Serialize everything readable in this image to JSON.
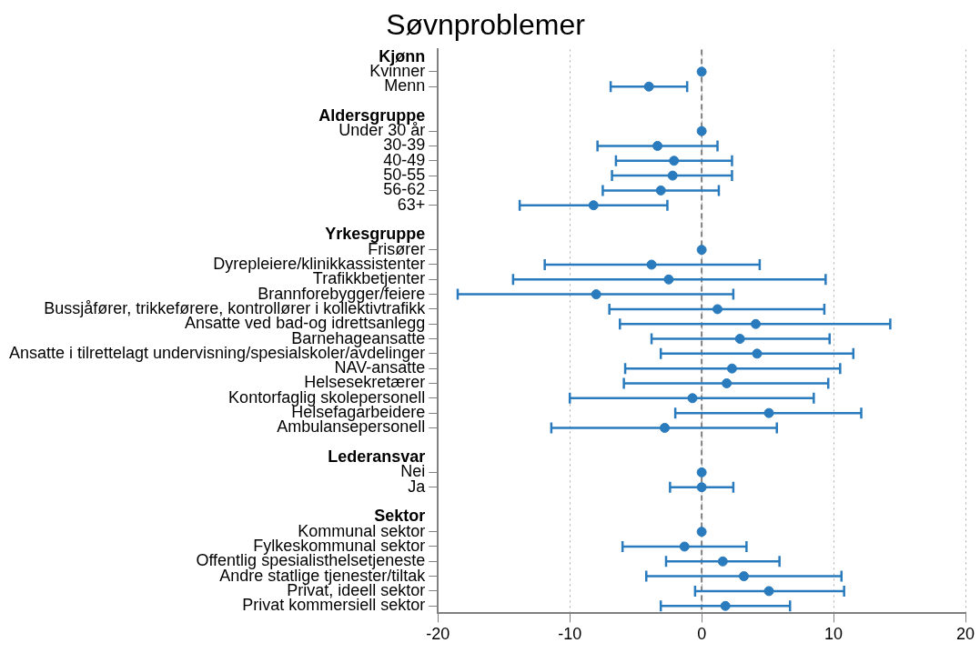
{
  "chart_data": {
    "type": "scatter",
    "title": "Søvnproblemer",
    "categories": [
      "Kjønn",
      "Kvinner",
      "Menn",
      null,
      "Aldersgruppe",
      "Under 30 år",
      "30-39",
      "40-49",
      "50-55",
      "56-62",
      "63+",
      null,
      "Yrkesgruppe",
      "Frisører",
      "Dyrepleiere/klinikkassistenter",
      "Trafikkbetjenter",
      "Brannforebygger/feiere",
      "Bussjåfører, trikkeførere, kontrollører i kollektivtrafikk",
      "Ansatte ved bad-og idrettsanlegg",
      "Barnehageansatte",
      "Ansatte i tilrettelagt undervisning/spesialskoler/avdelinger",
      "NAV-ansatte",
      "Helsesekretærer",
      "Kontorfaglig skolepersonell",
      "Helsefagarbeidere",
      "Ambulansepersonell",
      null,
      "Lederansvar",
      "Nei",
      "Ja",
      null,
      "Sektor",
      "Kommunal sektor",
      "Fylkeskommunal sektor",
      "Offentlig spesialisthelsetjeneste",
      "Andre statlige tjenester/tiltak",
      "Privat, ideell sektor",
      "Privat kommersiell sektor"
    ],
    "values": [
      null,
      0,
      -4.0,
      null,
      null,
      0,
      -3.35,
      -2.1,
      -2.2,
      -3.1,
      -8.2,
      null,
      null,
      0,
      -3.8,
      -2.5,
      -8.0,
      1.2,
      4.1,
      2.9,
      4.2,
      2.3,
      1.9,
      -0.7,
      5.1,
      -2.8,
      null,
      null,
      0,
      0,
      null,
      null,
      0,
      -1.3,
      1.6,
      3.2,
      5.1,
      1.8
    ],
    "errors": [
      null,
      null,
      [
        -6.9,
        -1.1
      ],
      null,
      null,
      null,
      [
        -7.9,
        1.2
      ],
      [
        -6.5,
        2.3
      ],
      [
        -6.8,
        2.3
      ],
      [
        -7.5,
        1.3
      ],
      [
        -13.8,
        -2.6
      ],
      null,
      null,
      null,
      [
        -11.9,
        4.4
      ],
      [
        -14.3,
        9.4
      ],
      [
        -18.5,
        2.4
      ],
      [
        -7.0,
        9.3
      ],
      [
        -6.2,
        14.3
      ],
      [
        -3.8,
        9.7
      ],
      [
        -3.1,
        11.5
      ],
      [
        -5.8,
        10.5
      ],
      [
        -5.9,
        9.6
      ],
      [
        -10.0,
        8.5
      ],
      [
        -2.0,
        12.1
      ],
      [
        -11.4,
        5.7
      ],
      null,
      null,
      null,
      [
        -2.4,
        2.4
      ],
      null,
      null,
      null,
      [
        -6.0,
        3.4
      ],
      [
        -2.7,
        5.9
      ],
      [
        -4.2,
        10.6
      ],
      [
        -0.5,
        10.8
      ],
      [
        -3.1,
        6.7
      ]
    ],
    "color": "#2a7bbd",
    "orientation": "horizontal",
    "xlim": [
      -20,
      20
    ],
    "xticks": [
      -20,
      -10,
      0,
      10,
      20
    ],
    "grid": "x",
    "marker": "circle",
    "ref_lines": [
      {
        "axis": "x",
        "value": 0,
        "line_style": "dashed",
        "color": "#808080"
      }
    ]
  }
}
